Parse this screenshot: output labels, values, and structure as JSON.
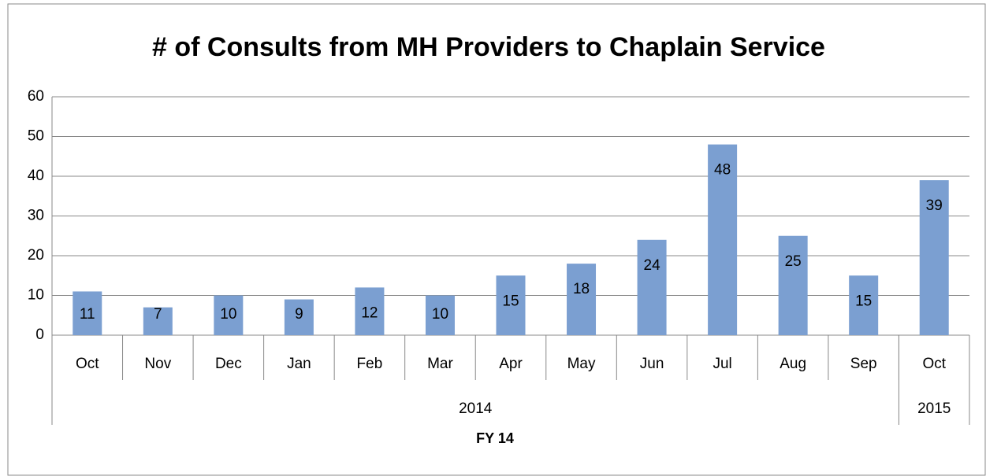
{
  "chart_data": {
    "type": "bar",
    "title": "# of Consults from MH Providers to Chaplain Service",
    "x_label": "FY 14",
    "categories": [
      "Oct",
      "Nov",
      "Dec",
      "Jan",
      "Feb",
      "Mar",
      "Apr",
      "May",
      "Jun",
      "Jul",
      "Aug",
      "Sep",
      "Oct"
    ],
    "years": [
      "2014",
      "2014",
      "2014",
      "2014",
      "2014",
      "2014",
      "2014",
      "2014",
      "2014",
      "2014",
      "2014",
      "2014",
      "2015"
    ],
    "values": [
      11,
      7,
      10,
      9,
      12,
      10,
      15,
      18,
      24,
      48,
      25,
      15,
      39
    ],
    "color": "#7b9fd1",
    "ylim": [
      0,
      60
    ],
    "yticks": [
      0,
      10,
      20,
      30,
      40,
      50,
      60
    ],
    "grid": true
  }
}
